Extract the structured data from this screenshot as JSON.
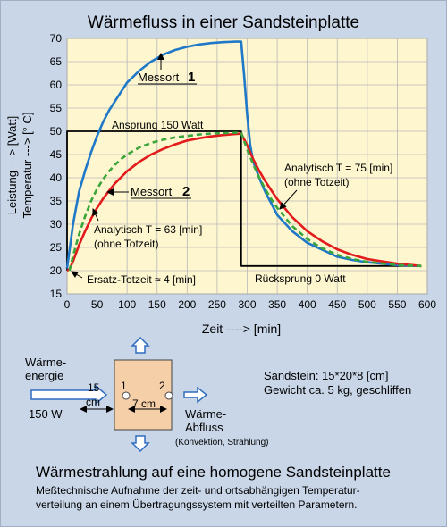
{
  "chart_data": {
    "type": "line",
    "title": "Wärmefluss in einer Sandsteinplatte",
    "xlabel": "Zeit ----> [min]",
    "ylabel_line1": "Leistung --->  [Watt]",
    "ylabel_line2": "Temperatur --->  [° C]",
    "xlim": [
      0,
      600
    ],
    "ylim": [
      15,
      70
    ],
    "x_ticks": [
      0,
      50,
      100,
      150,
      200,
      250,
      300,
      350,
      400,
      450,
      500,
      550,
      600
    ],
    "y_ticks": [
      15,
      20,
      25,
      30,
      35,
      40,
      45,
      50,
      55,
      60,
      65,
      70
    ],
    "grid": true,
    "series": [
      {
        "key": "power",
        "color": "#000000",
        "x": [
          0,
          0,
          290,
          290,
          590
        ],
        "y": [
          20,
          50,
          50,
          21,
          21
        ]
      },
      {
        "key": "messort1",
        "color": "#1f78c8",
        "x": [
          0,
          10,
          20,
          30,
          40,
          50,
          60,
          70,
          80,
          90,
          100,
          120,
          140,
          160,
          180,
          200,
          220,
          240,
          260,
          280,
          290,
          295,
          300,
          305,
          310,
          320,
          330,
          340,
          350,
          375,
          400,
          425,
          450,
          475,
          500,
          550,
          590
        ],
        "y": [
          20.5,
          30,
          37,
          41.5,
          45.5,
          49,
          52,
          54.5,
          56.5,
          58.5,
          60.5,
          63,
          65,
          66.5,
          67.5,
          68.2,
          68.7,
          69,
          69.2,
          69.3,
          69.3,
          62,
          53.5,
          47,
          43.5,
          40,
          37,
          34.5,
          32,
          28.5,
          26,
          24.5,
          23,
          22.3,
          21.8,
          21.2,
          21
        ]
      },
      {
        "key": "messort2",
        "color": "#e31a1c",
        "x": [
          0,
          4,
          10,
          20,
          30,
          40,
          50,
          60,
          70,
          80,
          90,
          100,
          120,
          140,
          160,
          180,
          200,
          220,
          240,
          260,
          280,
          290,
          300,
          310,
          320,
          330,
          340,
          350,
          375,
          400,
          425,
          450,
          475,
          500,
          550,
          590
        ],
        "y": [
          20,
          20.3,
          22,
          25.5,
          28.5,
          31.2,
          33.5,
          35.5,
          37.2,
          38.8,
          40.1,
          41.4,
          43.4,
          45,
          46.2,
          47.2,
          48,
          48.5,
          48.9,
          49.2,
          49.4,
          49.5,
          47,
          44,
          41.5,
          39.3,
          37.3,
          35.4,
          31.5,
          28.5,
          26.3,
          24.6,
          23.4,
          22.5,
          21.5,
          21
        ]
      },
      {
        "key": "analytisch63",
        "color": "#3aa53a",
        "dashed": true,
        "x": [
          4,
          10,
          20,
          30,
          40,
          50,
          60,
          70,
          80,
          90,
          100,
          120,
          140,
          160,
          180,
          200,
          220,
          240,
          260,
          280,
          290
        ],
        "y": [
          20,
          23.2,
          27.8,
          31.7,
          35,
          37.6,
          39.7,
          41.4,
          42.8,
          44,
          45,
          46.5,
          47.5,
          48.2,
          48.7,
          49,
          49.3,
          49.5,
          49.6,
          49.7,
          49.7
        ]
      },
      {
        "key": "analytisch75",
        "color": "#3aa53a",
        "dashed": true,
        "x": [
          290,
          300,
          310,
          320,
          330,
          340,
          350,
          375,
          400,
          425,
          450,
          475,
          500,
          550,
          590
        ],
        "y": [
          49.7,
          46.1,
          42.9,
          40.1,
          37.6,
          35.4,
          33.5,
          29.6,
          26.8,
          24.8,
          23.4,
          22.5,
          21.9,
          21.2,
          21
        ]
      }
    ],
    "annotations": {
      "anspung": "Ansprung 150 Watt",
      "messort1": "Messort",
      "messort1_num": "1",
      "messort2": "Messort",
      "messort2_num": "2",
      "analytisch75_line1": "Analytisch T = 75 [min]",
      "analytisch75_line2": "(ohne Totzeit)",
      "analytisch63_line1": "Analytisch T = 63 [min]",
      "analytisch63_line2": "(ohne Totzeit)",
      "ersatz": "Ersatz-Totzeit ≈ 4 [min]",
      "ruecksprung": "Rücksprung 0 Watt"
    }
  },
  "diagram": {
    "waerme_energie_line1": "Wärme-",
    "waerme_energie_line2": "energie",
    "power_label": "150 W",
    "dist_label_line1": "15",
    "dist_label_line2": "cm",
    "point1": "1",
    "point2": "2",
    "width_label": "7 cm",
    "abfluss_line1": "Wärme-",
    "abfluss_line2": "Abfluss",
    "abfluss_note": "(Konvektion, Strahlung)",
    "sandstein_line1": "Sandstein: 15*20*8 [cm]",
    "sandstein_line2": "Gewicht ca. 5 kg, geschliffen",
    "colors": {
      "plate": "#f5cfa8",
      "arrow": "#2e6cc0"
    }
  },
  "footer": {
    "heading": "Wärmestrahlung auf eine homogene Sandsteinplatte",
    "text_line1": "Meßtechnische Aufnahme der zeit- und ortsabhängigen Temperatur-",
    "text_line2": "verteilung an einem Übertragungssystem mit verteilten Parametern."
  }
}
